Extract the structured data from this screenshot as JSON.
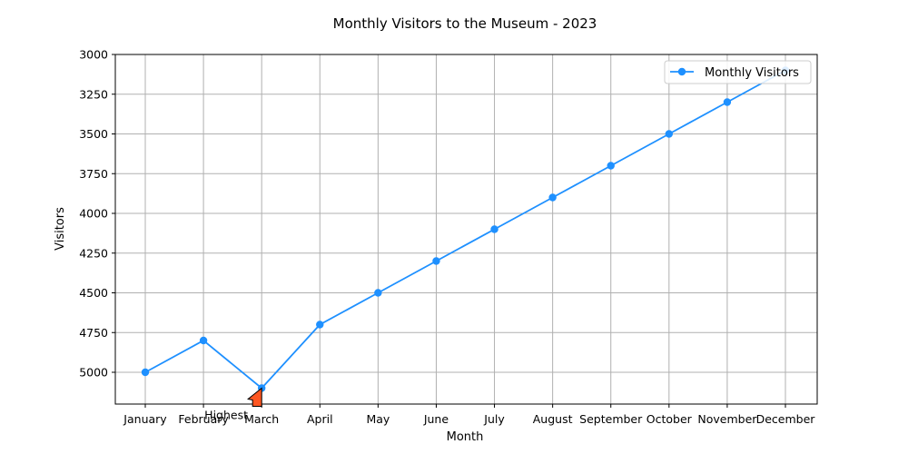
{
  "chart_data": {
    "type": "line",
    "title": "Monthly Visitors to the Museum - 2023",
    "xlabel": "Month",
    "ylabel": "Visitors",
    "categories": [
      "January",
      "February",
      "March",
      "April",
      "May",
      "June",
      "July",
      "August",
      "September",
      "October",
      "November",
      "December"
    ],
    "series": [
      {
        "name": "Monthly Visitors",
        "color": "#1e90ff",
        "values": [
          5000,
          4800,
          5100,
          4700,
          4500,
          4300,
          4100,
          3900,
          3700,
          3500,
          3300,
          3100
        ]
      }
    ],
    "ylim": [
      5200,
      3000
    ],
    "y_inverted": true,
    "yticks": [
      3000,
      3250,
      3500,
      3750,
      4000,
      4250,
      4500,
      4750,
      5000
    ],
    "ytick_labels": [
      "3000",
      "3250",
      "3500",
      "3750",
      "4000",
      "4250",
      "4500",
      "4750",
      "5000"
    ],
    "grid": true,
    "legend_position": "top-right",
    "annotation": {
      "text": "Highest",
      "target_category": "March",
      "target_value": 5100,
      "arrow_color": "#ff5722"
    }
  }
}
